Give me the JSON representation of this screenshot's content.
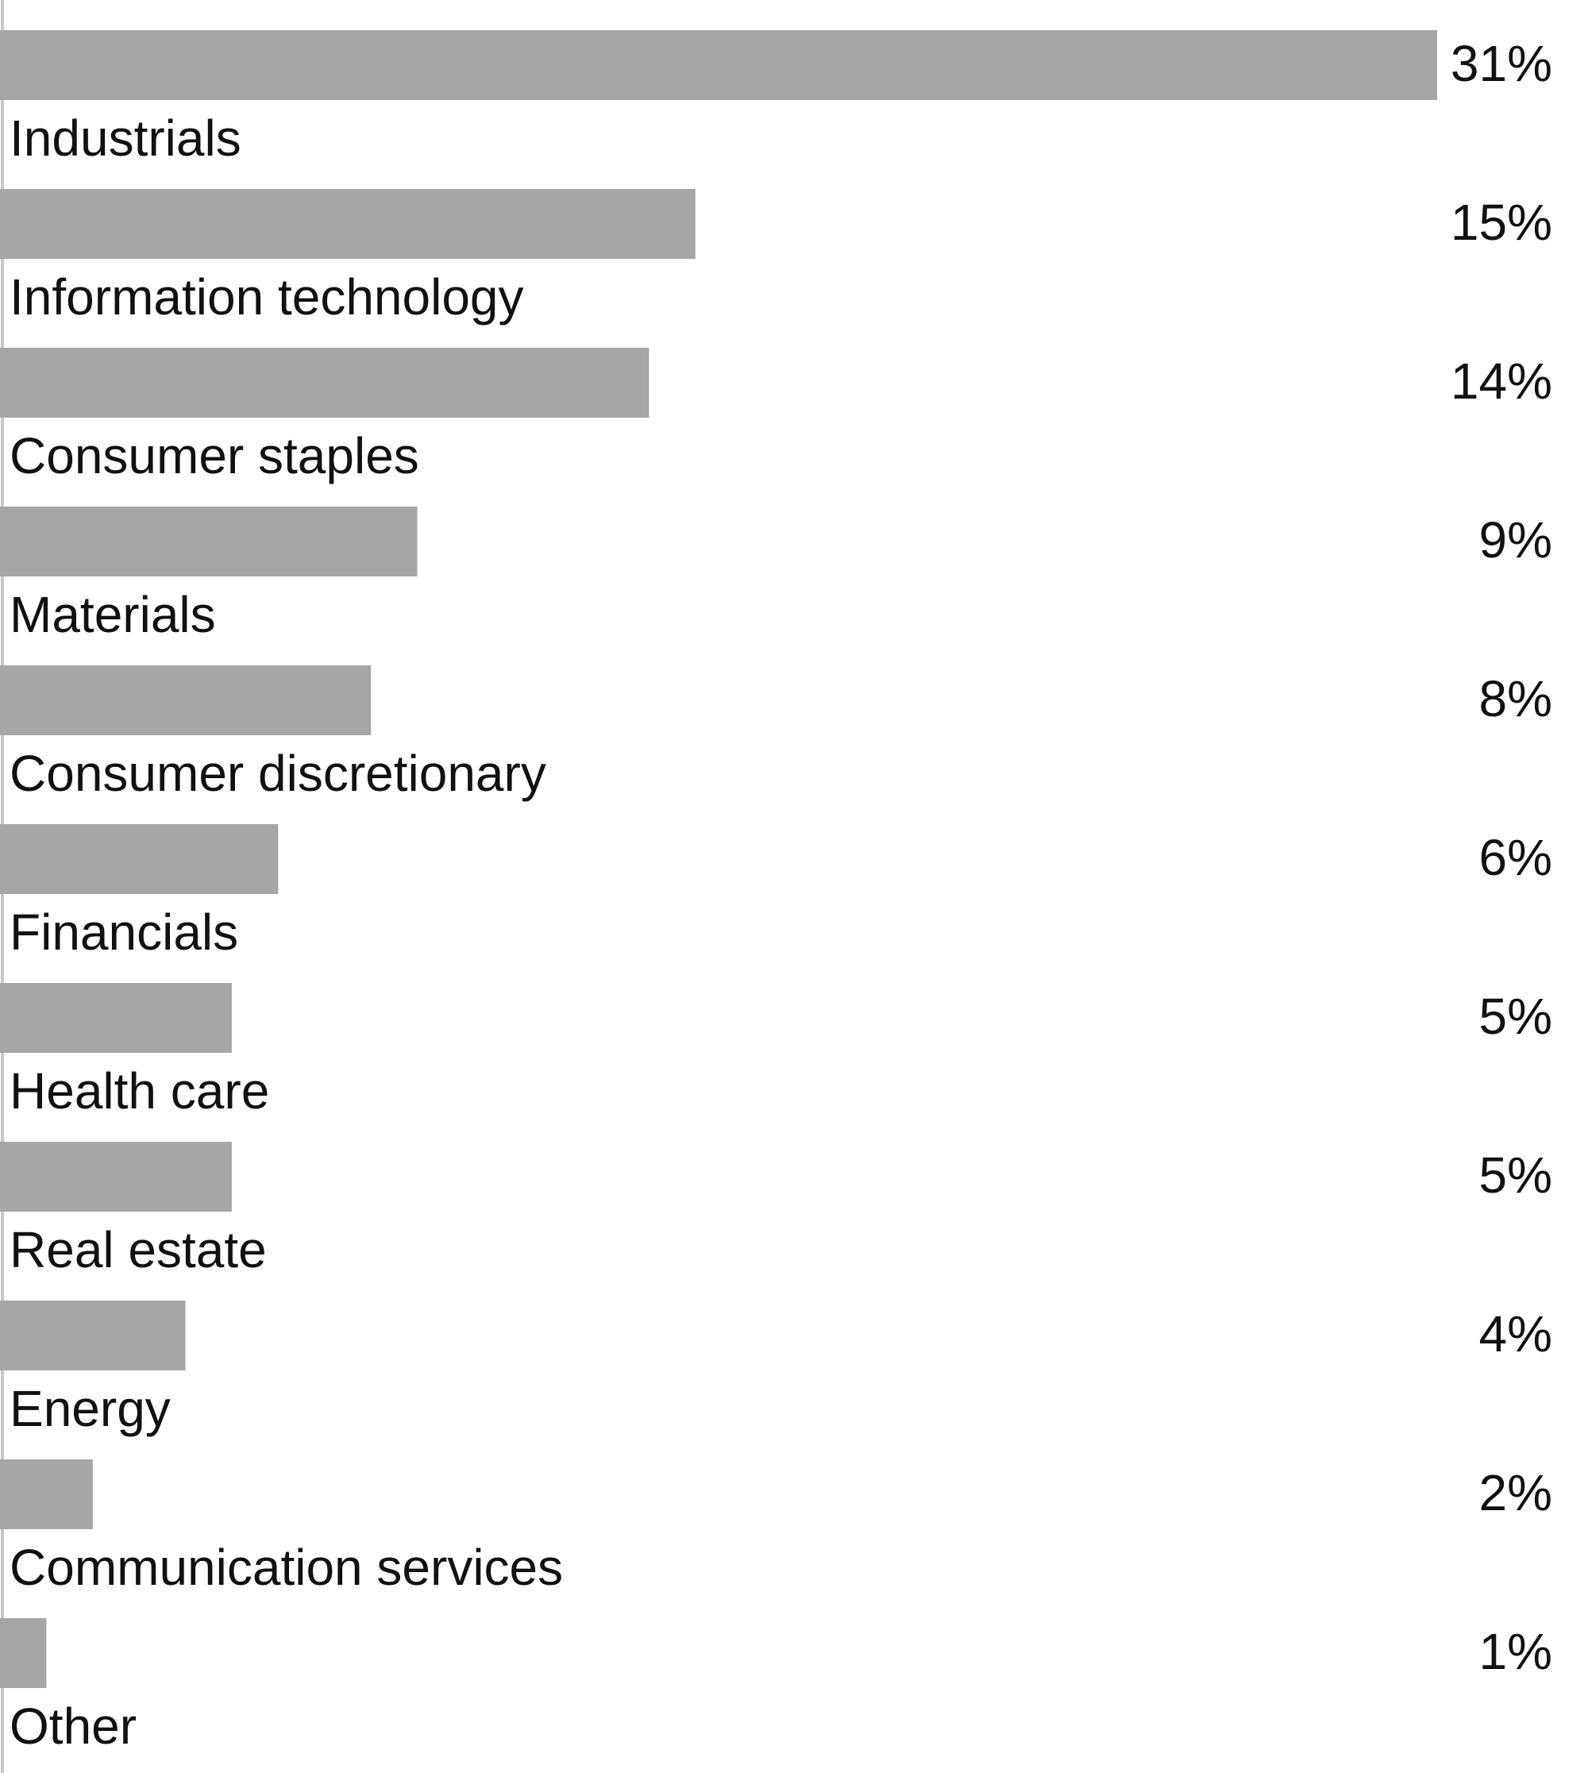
{
  "chart_data": {
    "type": "bar",
    "orientation": "horizontal",
    "title": "",
    "xlabel": "",
    "ylabel": "",
    "categories": [
      "Industrials",
      "Information technology",
      "Consumer staples",
      "Materials",
      "Consumer discretionary",
      "Financials",
      "Health care",
      "Real estate",
      "Energy",
      "Communication services",
      "Other"
    ],
    "values": [
      31,
      15,
      14,
      9,
      8,
      6,
      5,
      5,
      4,
      2,
      1
    ],
    "value_labels": [
      "31%",
      "15%",
      "14%",
      "9%",
      "8%",
      "6%",
      "5%",
      "5%",
      "4%",
      "2%",
      "1%"
    ],
    "unit": "%",
    "xlim": [
      0,
      31
    ],
    "grid": false,
    "legend": "none",
    "bar_color": "#a6a6a6",
    "axis_color": "#c8c8c8",
    "text_color": "#111111"
  }
}
